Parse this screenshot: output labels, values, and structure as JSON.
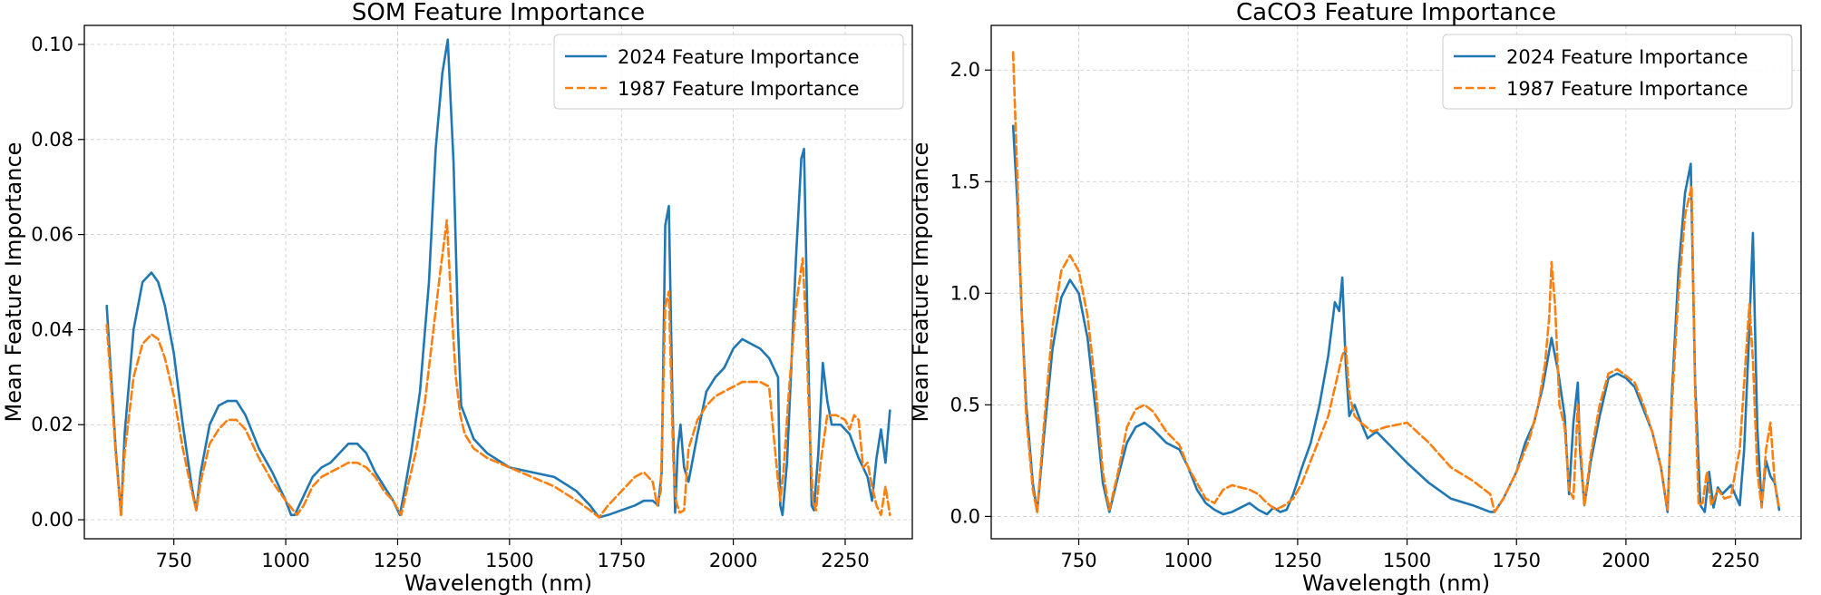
{
  "chart_data": [
    {
      "type": "line",
      "title": "SOM Feature Importance",
      "xlabel": "Wavelength (nm)",
      "ylabel": "Mean Feature Importance",
      "xlim": [
        550,
        2400
      ],
      "ylim": [
        -0.004,
        0.104
      ],
      "xticks": [
        750,
        1000,
        1250,
        1500,
        1750,
        2000,
        2250
      ],
      "yticks": [
        0.0,
        0.02,
        0.04,
        0.06,
        0.08,
        0.1
      ],
      "ytick_labels": [
        "0.00",
        "0.02",
        "0.04",
        "0.06",
        "0.08",
        "0.10"
      ],
      "grid": true,
      "legend": "upper-right",
      "series": [
        {
          "name": "2024 Feature Importance",
          "color": "#1f77b4",
          "style": "solid",
          "x": [
            600,
            610,
            620,
            632,
            640,
            660,
            680,
            700,
            715,
            730,
            750,
            770,
            790,
            800,
            810,
            830,
            850,
            870,
            890,
            910,
            940,
            970,
            1000,
            1012,
            1020,
            1040,
            1060,
            1080,
            1100,
            1120,
            1140,
            1160,
            1180,
            1200,
            1220,
            1240,
            1255,
            1265,
            1280,
            1300,
            1320,
            1335,
            1350,
            1362,
            1375,
            1385,
            1392,
            1400,
            1420,
            1450,
            1500,
            1550,
            1600,
            1650,
            1680,
            1700,
            1720,
            1750,
            1780,
            1800,
            1820,
            1832,
            1840,
            1848,
            1856,
            1864,
            1870,
            1876,
            1882,
            1890,
            1900,
            1920,
            1940,
            1960,
            1980,
            2000,
            2020,
            2040,
            2060,
            2080,
            2100,
            2105,
            2110,
            2120,
            2130,
            2140,
            2152,
            2158,
            2165,
            2175,
            2180,
            2190,
            2200,
            2210,
            2220,
            2240,
            2260,
            2280,
            2300,
            2310,
            2320,
            2330,
            2340,
            2350
          ],
          "values": [
            0.045,
            0.03,
            0.015,
            0.001,
            0.018,
            0.04,
            0.05,
            0.052,
            0.05,
            0.045,
            0.035,
            0.02,
            0.007,
            0.002,
            0.01,
            0.02,
            0.024,
            0.025,
            0.025,
            0.022,
            0.015,
            0.01,
            0.004,
            0.001,
            0.001,
            0.005,
            0.009,
            0.011,
            0.012,
            0.014,
            0.016,
            0.016,
            0.014,
            0.01,
            0.007,
            0.004,
            0.001,
            0.006,
            0.014,
            0.027,
            0.05,
            0.078,
            0.094,
            0.101,
            0.075,
            0.04,
            0.024,
            0.022,
            0.017,
            0.014,
            0.011,
            0.01,
            0.009,
            0.006,
            0.003,
            0.0005,
            0.001,
            0.002,
            0.003,
            0.004,
            0.004,
            0.003,
            0.01,
            0.062,
            0.066,
            0.025,
            0.0015,
            0.015,
            0.02,
            0.011,
            0.008,
            0.018,
            0.027,
            0.03,
            0.032,
            0.036,
            0.038,
            0.037,
            0.036,
            0.034,
            0.03,
            0.003,
            0.001,
            0.012,
            0.033,
            0.055,
            0.076,
            0.078,
            0.045,
            0.003,
            0.002,
            0.014,
            0.033,
            0.025,
            0.02,
            0.02,
            0.018,
            0.013,
            0.009,
            0.004,
            0.013,
            0.019,
            0.012,
            0.023
          ]
        },
        {
          "name": "1987 Feature Importance",
          "color": "#ff7f0e",
          "style": "dashed",
          "x": [
            600,
            610,
            620,
            632,
            640,
            660,
            680,
            700,
            715,
            730,
            750,
            770,
            790,
            800,
            810,
            830,
            850,
            870,
            890,
            910,
            940,
            970,
            1000,
            1025,
            1040,
            1060,
            1080,
            1100,
            1120,
            1140,
            1160,
            1180,
            1200,
            1220,
            1240,
            1258,
            1270,
            1290,
            1310,
            1330,
            1345,
            1360,
            1370,
            1380,
            1390,
            1400,
            1420,
            1450,
            1500,
            1550,
            1600,
            1650,
            1680,
            1700,
            1720,
            1750,
            1780,
            1800,
            1820,
            1830,
            1838,
            1848,
            1856,
            1866,
            1872,
            1880,
            1890,
            1900,
            1920,
            1940,
            1960,
            1980,
            2000,
            2020,
            2040,
            2060,
            2080,
            2100,
            2105,
            2112,
            2125,
            2140,
            2155,
            2162,
            2170,
            2178,
            2185,
            2195,
            2210,
            2230,
            2250,
            2260,
            2270,
            2280,
            2290,
            2300,
            2310,
            2320,
            2330,
            2340,
            2350
          ],
          "values": [
            0.041,
            0.028,
            0.014,
            0.001,
            0.014,
            0.03,
            0.037,
            0.039,
            0.038,
            0.034,
            0.026,
            0.015,
            0.006,
            0.002,
            0.008,
            0.016,
            0.019,
            0.021,
            0.021,
            0.019,
            0.013,
            0.008,
            0.004,
            0.001,
            0.003,
            0.007,
            0.009,
            0.01,
            0.011,
            0.012,
            0.012,
            0.011,
            0.009,
            0.006,
            0.004,
            0.001,
            0.006,
            0.014,
            0.024,
            0.04,
            0.052,
            0.063,
            0.045,
            0.03,
            0.022,
            0.018,
            0.015,
            0.013,
            0.011,
            0.009,
            0.007,
            0.004,
            0.002,
            0.0005,
            0.003,
            0.006,
            0.009,
            0.01,
            0.008,
            0.003,
            0.006,
            0.045,
            0.048,
            0.012,
            0.004,
            0.0015,
            0.002,
            0.015,
            0.021,
            0.024,
            0.026,
            0.027,
            0.028,
            0.029,
            0.029,
            0.029,
            0.028,
            0.008,
            0.004,
            0.01,
            0.028,
            0.045,
            0.055,
            0.042,
            0.02,
            0.004,
            0.002,
            0.012,
            0.022,
            0.022,
            0.021,
            0.019,
            0.022,
            0.021,
            0.011,
            0.012,
            0.007,
            0.003,
            0.001,
            0.007,
            0.001
          ]
        }
      ]
    },
    {
      "type": "line",
      "title": "CaCO3 Feature Importance",
      "xlabel": "Wavelength (nm)",
      "ylabel": "Mean Feature Importance",
      "xlim": [
        550,
        2400
      ],
      "ylim": [
        -0.1,
        2.2
      ],
      "xticks": [
        750,
        1000,
        1250,
        1500,
        1750,
        2000,
        2250
      ],
      "yticks": [
        0.0,
        0.5,
        1.0,
        1.5,
        2.0
      ],
      "ytick_labels": [
        "0.0",
        "0.5",
        "1.0",
        "1.5",
        "2.0"
      ],
      "grid": true,
      "legend": "upper-right",
      "series": [
        {
          "name": "2024 Feature Importance",
          "color": "#1f77b4",
          "style": "solid",
          "x": [
            600,
            610,
            620,
            630,
            645,
            655,
            670,
            690,
            710,
            730,
            750,
            770,
            790,
            805,
            820,
            840,
            860,
            880,
            900,
            920,
            950,
            980,
            1000,
            1020,
            1040,
            1060,
            1080,
            1100,
            1120,
            1140,
            1160,
            1180,
            1195,
            1210,
            1225,
            1240,
            1260,
            1280,
            1300,
            1320,
            1335,
            1345,
            1352,
            1360,
            1368,
            1380,
            1395,
            1410,
            1430,
            1460,
            1500,
            1550,
            1600,
            1650,
            1690,
            1700,
            1720,
            1750,
            1770,
            1790,
            1810,
            1830,
            1845,
            1860,
            1870,
            1880,
            1890,
            1895,
            1905,
            1920,
            1940,
            1960,
            1980,
            2000,
            2020,
            2040,
            2060,
            2080,
            2095,
            2105,
            2120,
            2135,
            2148,
            2158,
            2170,
            2180,
            2190,
            2200,
            2210,
            2220,
            2240,
            2260,
            2270,
            2280,
            2290,
            2300,
            2310,
            2320,
            2330,
            2340,
            2350
          ],
          "values": [
            1.75,
            1.4,
            0.9,
            0.5,
            0.15,
            0.02,
            0.35,
            0.75,
            0.98,
            1.06,
            1.0,
            0.8,
            0.45,
            0.15,
            0.02,
            0.18,
            0.33,
            0.4,
            0.42,
            0.39,
            0.33,
            0.3,
            0.22,
            0.12,
            0.06,
            0.03,
            0.01,
            0.02,
            0.04,
            0.06,
            0.03,
            0.01,
            0.04,
            0.02,
            0.03,
            0.1,
            0.22,
            0.33,
            0.5,
            0.72,
            0.96,
            0.92,
            1.07,
            0.68,
            0.45,
            0.5,
            0.42,
            0.35,
            0.38,
            0.32,
            0.24,
            0.15,
            0.08,
            0.05,
            0.02,
            0.02,
            0.08,
            0.2,
            0.33,
            0.42,
            0.58,
            0.8,
            0.65,
            0.45,
            0.1,
            0.42,
            0.6,
            0.3,
            0.05,
            0.25,
            0.45,
            0.62,
            0.64,
            0.62,
            0.58,
            0.48,
            0.38,
            0.22,
            0.02,
            0.55,
            1.1,
            1.45,
            1.58,
            0.6,
            0.05,
            0.02,
            0.2,
            0.04,
            0.13,
            0.1,
            0.14,
            0.05,
            0.3,
            0.75,
            1.27,
            0.4,
            0.05,
            0.25,
            0.18,
            0.15,
            0.03
          ]
        },
        {
          "name": "1987 Feature Importance",
          "color": "#ff7f0e",
          "style": "dashed",
          "x": [
            600,
            610,
            620,
            630,
            645,
            655,
            670,
            690,
            710,
            730,
            750,
            770,
            790,
            805,
            820,
            840,
            860,
            880,
            900,
            920,
            950,
            980,
            1000,
            1020,
            1040,
            1060,
            1080,
            1100,
            1120,
            1140,
            1160,
            1180,
            1200,
            1220,
            1240,
            1260,
            1280,
            1300,
            1320,
            1340,
            1352,
            1360,
            1368,
            1380,
            1395,
            1420,
            1450,
            1500,
            1550,
            1600,
            1650,
            1690,
            1700,
            1720,
            1750,
            1780,
            1800,
            1815,
            1825,
            1830,
            1838,
            1848,
            1860,
            1870,
            1880,
            1890,
            1895,
            1905,
            1920,
            1940,
            1960,
            1980,
            2000,
            2020,
            2040,
            2060,
            2080,
            2095,
            2105,
            2120,
            2135,
            2150,
            2158,
            2166,
            2175,
            2185,
            2195,
            2210,
            2225,
            2240,
            2250,
            2260,
            2270,
            2282,
            2290,
            2300,
            2310,
            2320,
            2330,
            2340,
            2350
          ],
          "values": [
            2.08,
            1.5,
            0.9,
            0.45,
            0.12,
            0.02,
            0.4,
            0.85,
            1.1,
            1.17,
            1.1,
            0.9,
            0.55,
            0.2,
            0.03,
            0.2,
            0.4,
            0.48,
            0.5,
            0.47,
            0.38,
            0.32,
            0.22,
            0.15,
            0.08,
            0.06,
            0.12,
            0.14,
            0.13,
            0.12,
            0.1,
            0.06,
            0.03,
            0.05,
            0.08,
            0.15,
            0.25,
            0.35,
            0.45,
            0.62,
            0.72,
            0.76,
            0.55,
            0.45,
            0.42,
            0.38,
            0.4,
            0.42,
            0.33,
            0.22,
            0.16,
            0.1,
            0.02,
            0.08,
            0.2,
            0.35,
            0.5,
            0.68,
            0.9,
            1.14,
            0.95,
            0.5,
            0.4,
            0.12,
            0.08,
            0.5,
            0.35,
            0.05,
            0.28,
            0.5,
            0.64,
            0.66,
            0.63,
            0.6,
            0.5,
            0.38,
            0.22,
            0.03,
            0.5,
            1.0,
            1.35,
            1.48,
            0.55,
            0.05,
            0.06,
            0.2,
            0.05,
            0.12,
            0.08,
            0.09,
            0.2,
            0.3,
            0.6,
            0.95,
            0.7,
            0.2,
            0.04,
            0.3,
            0.42,
            0.15,
            0.04
          ]
        }
      ]
    }
  ]
}
